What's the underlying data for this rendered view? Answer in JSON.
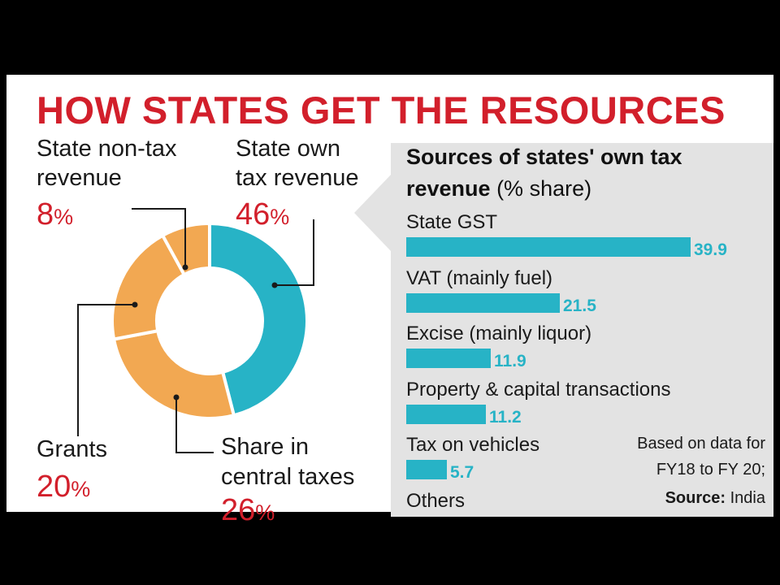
{
  "title": "HOW STATES GET THE RESOURCES",
  "colors": {
    "title": "#d21f2b",
    "pct": "#d21f2b",
    "blue": "#27b3c6",
    "orange": "#f2a852",
    "box": "#e3e3e3"
  },
  "donut": {
    "labels": {
      "nontax": {
        "line1": "State non-tax",
        "line2": "revenue",
        "value": "8",
        "unit": "%"
      },
      "owntax": {
        "line1": "State own",
        "line2": "tax revenue",
        "value": "46",
        "unit": "%"
      },
      "grants": {
        "line1": "Grants",
        "value": "20",
        "unit": "%"
      },
      "central": {
        "line1": "Share in",
        "line2": "central taxes",
        "value": "26",
        "unit": "%"
      }
    }
  },
  "panel": {
    "title_bold": "Sources of states' own tax revenue",
    "title_rest": " (% share)",
    "note_line1": "Based on data for",
    "note_line2": "FY18 to FY 20;",
    "source_label": "Source:",
    "source_value": " India"
  },
  "chart_data": [
    {
      "type": "pie",
      "labels": [
        "State own tax revenue",
        "Share in central taxes",
        "Grants",
        "State non-tax revenue"
      ],
      "values": [
        46,
        26,
        20,
        8
      ],
      "colors": [
        "#27b3c6",
        "#f2a852",
        "#f2a852",
        "#f2a852"
      ]
    },
    {
      "type": "bar",
      "title": "Sources of states' own tax revenue (% share)",
      "categories": [
        "State GST",
        "VAT (mainly fuel)",
        "Excise (mainly liquor)",
        "Property & capital transactions",
        "Tax on vehicles",
        "Others"
      ],
      "values": [
        39.9,
        21.5,
        11.9,
        11.2,
        5.7,
        null
      ],
      "value_labels": [
        "39.9",
        "21.5",
        "11.9",
        "11.2",
        "5.7",
        ""
      ]
    }
  ]
}
